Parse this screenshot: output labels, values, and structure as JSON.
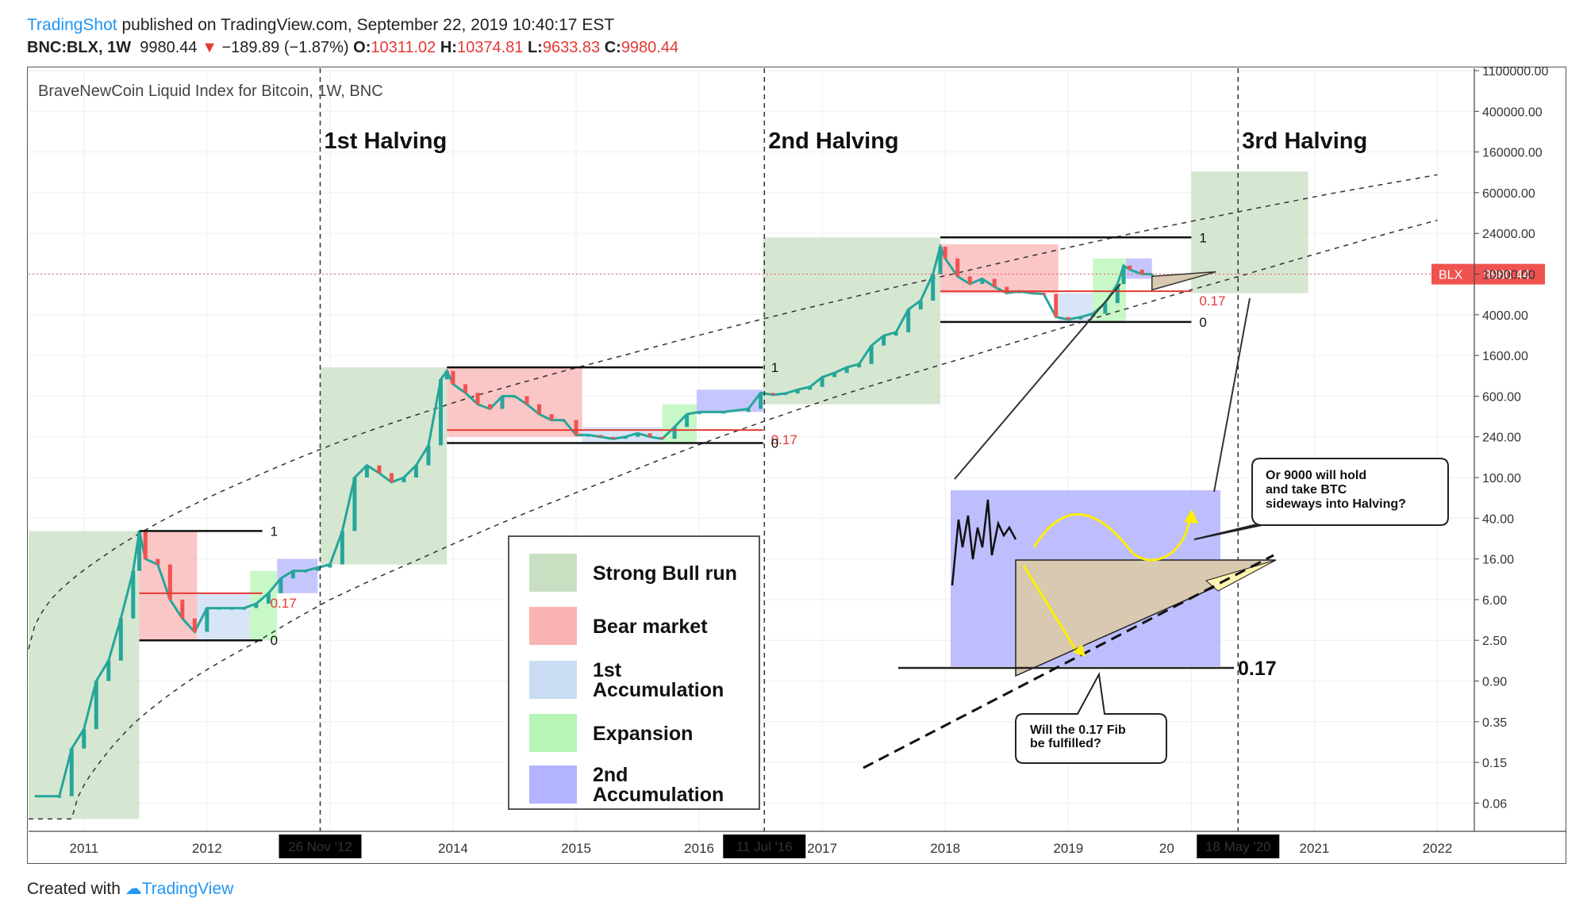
{
  "header": {
    "author": "TradingShot",
    "published": "published on TradingView.com, September 22, 2019 10:40:17 EST",
    "symbol": "BNC:BLX, 1W",
    "last": "9980.44",
    "change": "−189.89 (−1.87%)",
    "open_label": "O:",
    "open": "10311.02",
    "high_label": "H:",
    "high": "10374.81",
    "low_label": "L:",
    "low": "9633.83",
    "close_label": "C:",
    "close": "9980.44"
  },
  "footer": {
    "created_with": "Created with",
    "brand": "TradingView"
  },
  "colors": {
    "bull": "#c8dfc2",
    "bear": "#f9b3b3",
    "acc1": "#c9dcf4",
    "expansion": "#b6f5b6",
    "acc2": "#b3b3ff",
    "candle_up": "#26a69a",
    "candle_down": "#ef5350",
    "price_tag": "#ef5350",
    "bubble_border": "#222"
  },
  "chart_data": {
    "type": "line",
    "title": "BraveNewCoin Liquid Index for Bitcoin, 1W, BNC",
    "y_scale": "log",
    "x_ticks": [
      "2011",
      "2012",
      "26 Nov '12",
      "2014",
      "2015",
      "2016",
      "11 Jul '16",
      "2017",
      "2018",
      "2019",
      "20",
      "18 May '20",
      "2021",
      "2022"
    ],
    "y_ticks": [
      "1100000.00",
      "400000.00",
      "160000.00",
      "60000.00",
      "24000.00",
      "10000.00",
      "4000.00",
      "1600.00",
      "600.00",
      "240.00",
      "100.00",
      "40.00",
      "16.00",
      "6.00",
      "2.50",
      "0.90",
      "0.35",
      "0.15",
      "0.06"
    ],
    "price_tag": {
      "symbol": "BLX",
      "value": "9980.44"
    },
    "halvings": [
      {
        "label": "1st Halving",
        "date": "26 Nov '12"
      },
      {
        "label": "2nd Halving",
        "date": "11 Jul '16"
      },
      {
        "label": "3rd Halving",
        "date": "18 May '20"
      }
    ],
    "fib_levels": [
      "1",
      "0.17",
      "0"
    ],
    "big_fib_label": "0.17",
    "legend": [
      {
        "key": "bull",
        "label": "Strong Bull run"
      },
      {
        "key": "bear",
        "label": "Bear market"
      },
      {
        "key": "acc1",
        "label": "1st Accumulation"
      },
      {
        "key": "expansion",
        "label": "Expansion"
      },
      {
        "key": "acc2",
        "label": "2nd Accumulation"
      }
    ],
    "annotations": {
      "bubble_top": [
        "Or 9000 will hold",
        "and take BTC",
        "sideways into Halving?"
      ],
      "bubble_bottom": [
        "Will the 0.17 Fib",
        "be fulfilled?"
      ]
    },
    "series": [
      {
        "values": [
          [
            2010.6,
            0.07
          ],
          [
            2010.8,
            0.07
          ],
          [
            2010.9,
            0.2
          ],
          [
            2011.0,
            0.3
          ],
          [
            2011.1,
            0.9
          ],
          [
            2011.2,
            1.5
          ],
          [
            2011.3,
            4
          ],
          [
            2011.4,
            12
          ],
          [
            2011.45,
            30
          ],
          [
            2011.5,
            16
          ],
          [
            2011.6,
            14
          ],
          [
            2011.7,
            6
          ],
          [
            2011.8,
            4
          ],
          [
            2011.9,
            3
          ],
          [
            2012.0,
            5
          ],
          [
            2012.1,
            5
          ],
          [
            2012.2,
            5
          ],
          [
            2012.3,
            5
          ],
          [
            2012.4,
            5.5
          ],
          [
            2012.5,
            7
          ],
          [
            2012.6,
            10
          ],
          [
            2012.7,
            12
          ],
          [
            2012.8,
            12
          ],
          [
            2012.9,
            13
          ],
          [
            2013.0,
            14
          ],
          [
            2013.1,
            30
          ],
          [
            2013.2,
            100
          ],
          [
            2013.3,
            130
          ],
          [
            2013.4,
            110
          ],
          [
            2013.5,
            90
          ],
          [
            2013.6,
            100
          ],
          [
            2013.7,
            130
          ],
          [
            2013.8,
            200
          ],
          [
            2013.9,
            900
          ],
          [
            2013.95,
            1100
          ],
          [
            2014.0,
            800
          ],
          [
            2014.1,
            650
          ],
          [
            2014.2,
            500
          ],
          [
            2014.3,
            450
          ],
          [
            2014.4,
            600
          ],
          [
            2014.5,
            600
          ],
          [
            2014.6,
            500
          ],
          [
            2014.7,
            400
          ],
          [
            2014.8,
            350
          ],
          [
            2014.9,
            350
          ],
          [
            2015.0,
            250
          ],
          [
            2015.1,
            250
          ],
          [
            2015.2,
            240
          ],
          [
            2015.3,
            230
          ],
          [
            2015.4,
            240
          ],
          [
            2015.5,
            260
          ],
          [
            2015.6,
            240
          ],
          [
            2015.7,
            230
          ],
          [
            2015.8,
            300
          ],
          [
            2015.9,
            400
          ],
          [
            2016.0,
            420
          ],
          [
            2016.2,
            420
          ],
          [
            2016.4,
            450
          ],
          [
            2016.5,
            650
          ],
          [
            2016.6,
            620
          ],
          [
            2016.7,
            640
          ],
          [
            2016.8,
            700
          ],
          [
            2016.9,
            750
          ],
          [
            2017.0,
            950
          ],
          [
            2017.1,
            1050
          ],
          [
            2017.2,
            1200
          ],
          [
            2017.3,
            1300
          ],
          [
            2017.4,
            2000
          ],
          [
            2017.5,
            2500
          ],
          [
            2017.6,
            2700
          ],
          [
            2017.7,
            4500
          ],
          [
            2017.8,
            5500
          ],
          [
            2017.9,
            10000
          ],
          [
            2017.96,
            18000
          ],
          [
            2018.0,
            14000
          ],
          [
            2018.1,
            9500
          ],
          [
            2018.2,
            8000
          ],
          [
            2018.3,
            9000
          ],
          [
            2018.4,
            7500
          ],
          [
            2018.5,
            6500
          ],
          [
            2018.6,
            6800
          ],
          [
            2018.7,
            6500
          ],
          [
            2018.8,
            6400
          ],
          [
            2018.9,
            3800
          ],
          [
            2019.0,
            3600
          ],
          [
            2019.1,
            3800
          ],
          [
            2019.2,
            4100
          ],
          [
            2019.3,
            5200
          ],
          [
            2019.4,
            8000
          ],
          [
            2019.45,
            12000
          ],
          [
            2019.5,
            11000
          ],
          [
            2019.6,
            10000
          ],
          [
            2019.68,
            10000
          ]
        ]
      }
    ]
  }
}
